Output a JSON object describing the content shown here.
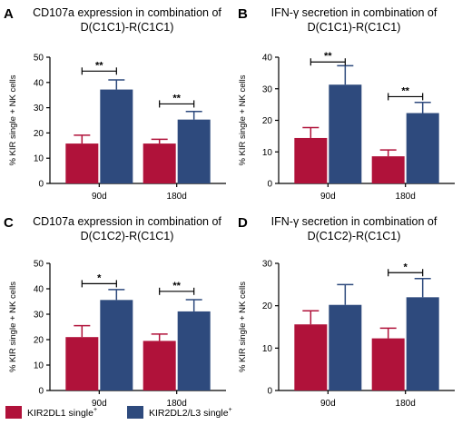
{
  "colors": {
    "series1": "#b0123a",
    "series2": "#2e4a7d",
    "axis": "#000000"
  },
  "legend": {
    "items": [
      {
        "label": "KIR2DL1 single",
        "sup": "+",
        "color": "#b0123a"
      },
      {
        "label": "KIR2DL2/L3 single",
        "sup": "+",
        "color": "#2e4a7d"
      }
    ]
  },
  "chart_data": [
    {
      "panel": "A",
      "type": "bar",
      "title": [
        "CD107a expression in combination of",
        "D(C1C1)-R(C1C1)"
      ],
      "ylabel": "% KIR single + NK cells",
      "categories": [
        "90d",
        "180d"
      ],
      "series": [
        {
          "name": "KIR2DL1 single+",
          "values": [
            15.8,
            15.8
          ],
          "errors": [
            3.3,
            1.7
          ]
        },
        {
          "name": "KIR2DL2/L3 single+",
          "values": [
            37.2,
            25.3
          ],
          "errors": [
            3.8,
            3.2
          ]
        }
      ],
      "ylim": [
        0,
        50
      ],
      "yticks": [
        0,
        10,
        20,
        30,
        40,
        50
      ],
      "significance": [
        {
          "category": "90d",
          "label": "**",
          "y": 44.5
        },
        {
          "category": "180d",
          "label": "**",
          "y": 31.5
        }
      ]
    },
    {
      "panel": "B",
      "type": "bar",
      "title": [
        "IFN-γ secretion in combination of",
        "D(C1C1)-R(C1C1)"
      ],
      "ylabel": "% KIR single + NK cells",
      "categories": [
        "90d",
        "180d"
      ],
      "series": [
        {
          "name": "KIR2DL1 single+",
          "values": [
            14.4,
            8.6
          ],
          "errors": [
            3.3,
            2.0
          ]
        },
        {
          "name": "KIR2DL2/L3 single+",
          "values": [
            31.3,
            22.3
          ],
          "errors": [
            6.0,
            3.4
          ]
        }
      ],
      "ylim": [
        0,
        40
      ],
      "yticks": [
        0,
        10,
        20,
        30,
        40
      ],
      "significance": [
        {
          "category": "90d",
          "label": "**",
          "y": 38.5
        },
        {
          "category": "180d",
          "label": "**",
          "y": 27.5
        }
      ]
    },
    {
      "panel": "C",
      "type": "bar",
      "title": [
        "CD107a expression in combination of",
        "D(C1C2)-R(C1C1)"
      ],
      "ylabel": "% KIR single + NK cells",
      "categories": [
        "90d",
        "180d"
      ],
      "series": [
        {
          "name": "KIR2DL1 single+",
          "values": [
            21.0,
            19.5
          ],
          "errors": [
            4.5,
            2.7
          ]
        },
        {
          "name": "KIR2DL2/L3 single+",
          "values": [
            35.6,
            31.1
          ],
          "errors": [
            4.1,
            4.6
          ]
        }
      ],
      "ylim": [
        0,
        50
      ],
      "yticks": [
        0,
        10,
        20,
        30,
        40,
        50
      ],
      "significance": [
        {
          "category": "90d",
          "label": "*",
          "y": 42.0
        },
        {
          "category": "180d",
          "label": "**",
          "y": 39.0
        }
      ]
    },
    {
      "panel": "D",
      "type": "bar",
      "title": [
        "IFN-γ secretion in combination of",
        "D(C1C2)-R(C1C1)"
      ],
      "ylabel": "% KIR single + NK cells",
      "categories": [
        "90d",
        "180d"
      ],
      "series": [
        {
          "name": "KIR2DL1 single+",
          "values": [
            15.6,
            12.3
          ],
          "errors": [
            3.2,
            2.4
          ]
        },
        {
          "name": "KIR2DL2/L3 single+",
          "values": [
            20.2,
            22.0
          ],
          "errors": [
            4.8,
            4.4
          ]
        }
      ],
      "ylim": [
        0,
        30
      ],
      "yticks": [
        0,
        10,
        20,
        30
      ],
      "significance": [
        {
          "category": "180d",
          "label": "*",
          "y": 27.8
        }
      ]
    }
  ]
}
